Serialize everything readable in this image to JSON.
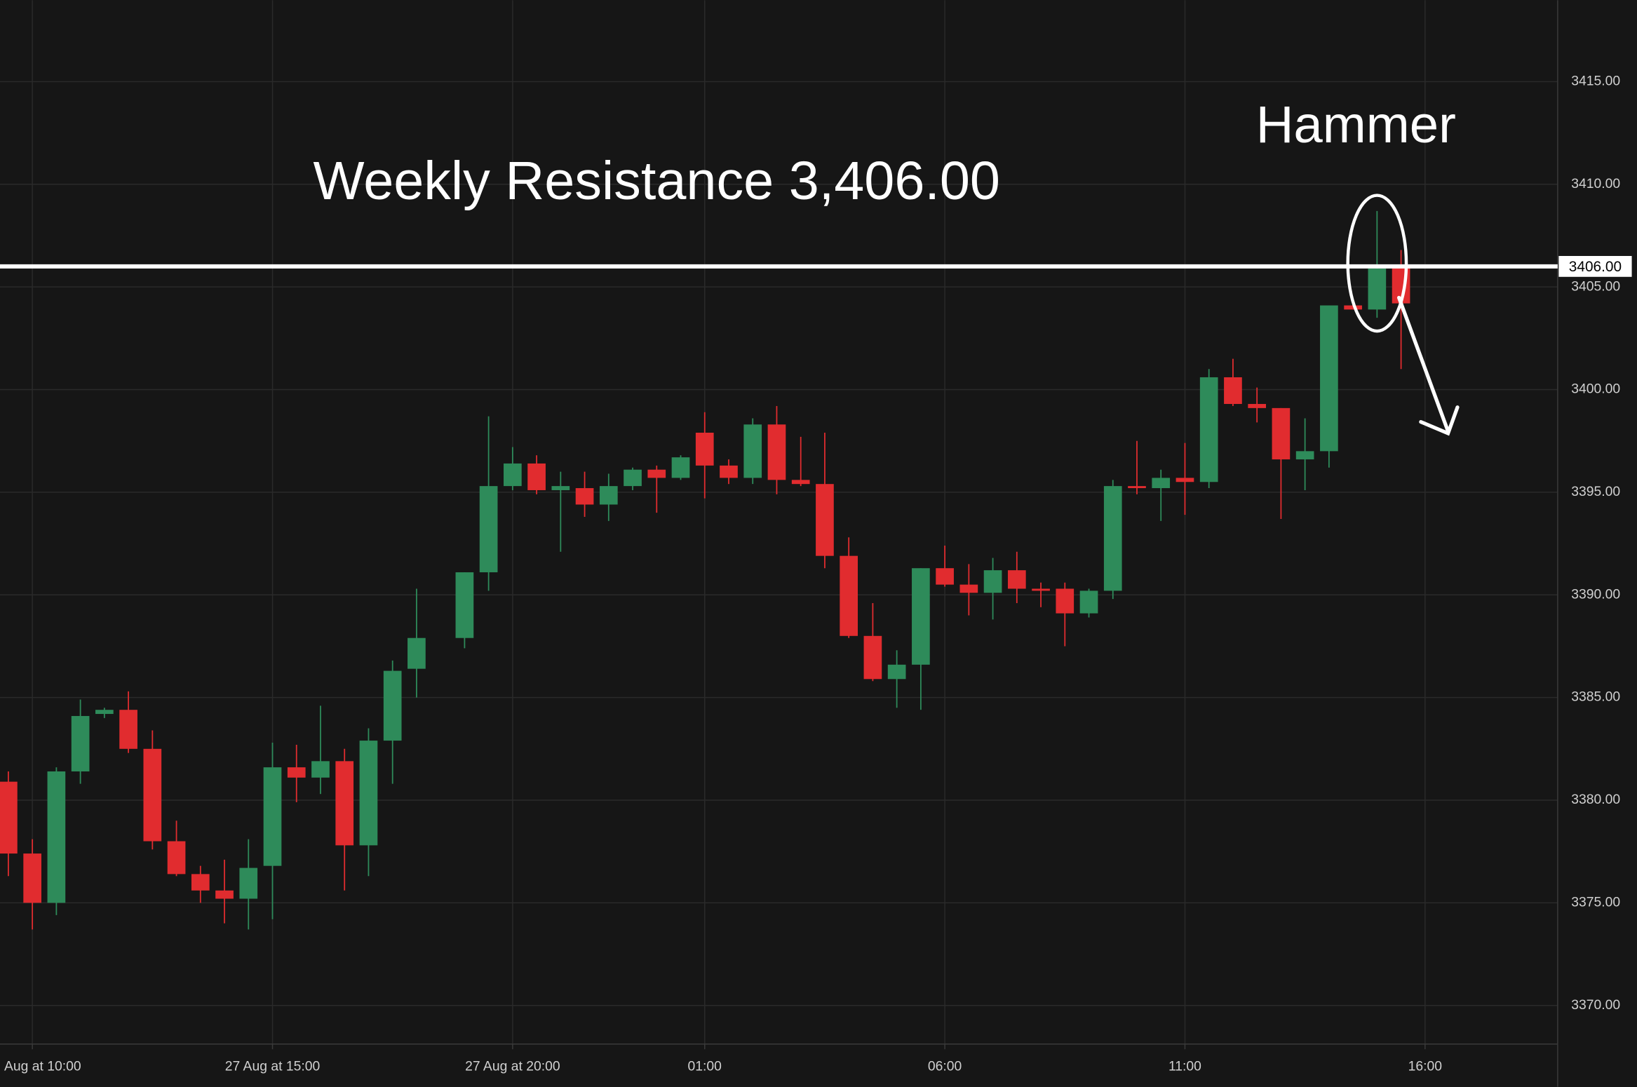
{
  "chart_data": {
    "type": "candlestick",
    "annotations": [
      "Weekly Resistance 3,406.00",
      "Hammer"
    ],
    "resistance": {
      "value": 3406,
      "label": "3406.00"
    },
    "up_color": "#2e8b5a",
    "down_color": "#e12c2f",
    "grid": true,
    "x": [
      0,
      1,
      2,
      3,
      4,
      5,
      6,
      7,
      8,
      9,
      10,
      11,
      12,
      13,
      14,
      15,
      16,
      17,
      19,
      20,
      21,
      22,
      23,
      24,
      25,
      26,
      27,
      28,
      29,
      30,
      31,
      32,
      33,
      34,
      35,
      36,
      37,
      38,
      39,
      40,
      41,
      42,
      43,
      44,
      45,
      46,
      47,
      48,
      49,
      50,
      51,
      52,
      53,
      54,
      55,
      56,
      57,
      58
    ],
    "open": [
      3380.9,
      3377.4,
      3375.0,
      3381.4,
      3384.2,
      3384.4,
      3382.5,
      3378.0,
      3376.4,
      3375.6,
      3375.2,
      3376.8,
      3381.6,
      3381.1,
      3381.9,
      3377.8,
      3382.9,
      3386.4,
      3387.9,
      3391.1,
      3395.3,
      3396.4,
      3395.1,
      3395.2,
      3394.4,
      3395.3,
      3396.1,
      3395.7,
      3397.9,
      3396.3,
      3395.7,
      3398.3,
      3395.6,
      3395.4,
      3391.9,
      3388.0,
      3385.9,
      3386.6,
      3391.3,
      3390.5,
      3390.1,
      3391.2,
      3390.3,
      3390.3,
      3389.1,
      3390.2,
      3395.3,
      3395.2,
      3395.7,
      3395.5,
      3400.6,
      3399.3,
      3399.1,
      3396.6,
      3397.0,
      3404.1,
      3403.9,
      3406.0
    ],
    "high": [
      3381.4,
      3378.1,
      3381.6,
      3384.9,
      3384.5,
      3385.3,
      3383.4,
      3379.0,
      3376.8,
      3377.1,
      3378.1,
      3382.8,
      3382.7,
      3384.6,
      3382.5,
      3383.5,
      3386.8,
      3390.3,
      3391.1,
      3398.7,
      3397.2,
      3396.8,
      3396.0,
      3396.0,
      3395.9,
      3396.2,
      3396.3,
      3396.8,
      3398.9,
      3396.6,
      3398.6,
      3399.2,
      3397.7,
      3397.9,
      3392.8,
      3389.6,
      3387.3,
      3391.3,
      3392.4,
      3391.5,
      3391.8,
      3392.1,
      3390.6,
      3390.6,
      3390.3,
      3395.6,
      3397.5,
      3396.1,
      3397.4,
      3401.0,
      3401.5,
      3400.1,
      3399.1,
      3398.6,
      3404.1,
      3404.2,
      3408.7,
      3406.8
    ],
    "low": [
      3376.3,
      3373.7,
      3374.4,
      3380.8,
      3384.0,
      3382.3,
      3377.6,
      3376.3,
      3375.0,
      3374.0,
      3373.7,
      3374.2,
      3379.9,
      3380.3,
      3375.6,
      3376.3,
      3380.8,
      3385.0,
      3387.4,
      3390.2,
      3395.1,
      3394.9,
      3392.1,
      3393.8,
      3393.6,
      3395.1,
      3394.0,
      3395.6,
      3394.7,
      3395.4,
      3395.4,
      3394.9,
      3395.3,
      3391.3,
      3387.9,
      3385.8,
      3384.5,
      3384.4,
      3390.4,
      3389.0,
      3388.8,
      3389.6,
      3389.4,
      3387.5,
      3388.9,
      3389.8,
      3394.9,
      3393.6,
      3393.9,
      3395.2,
      3399.2,
      3398.4,
      3393.7,
      3395.1,
      3396.2,
      3403.9,
      3403.5,
      3401.0
    ],
    "close": [
      3377.4,
      3375.0,
      3381.4,
      3384.1,
      3384.4,
      3382.5,
      3378.0,
      3376.4,
      3375.6,
      3375.2,
      3376.7,
      3381.6,
      3381.1,
      3381.9,
      3377.8,
      3382.9,
      3386.3,
      3387.9,
      3391.1,
      3395.3,
      3396.4,
      3395.1,
      3395.3,
      3394.4,
      3395.3,
      3396.1,
      3395.7,
      3396.7,
      3396.3,
      3395.7,
      3398.3,
      3395.6,
      3395.4,
      3391.9,
      3388.0,
      3385.9,
      3386.6,
      3391.3,
      3390.5,
      3390.1,
      3391.2,
      3390.3,
      3390.2,
      3389.1,
      3390.2,
      3395.3,
      3395.2,
      3395.7,
      3395.5,
      3400.6,
      3399.3,
      3399.1,
      3396.6,
      3397.0,
      3404.1,
      3403.9,
      3405.9,
      3404.2
    ],
    "xlim": [
      -0.348,
      64.522
    ],
    "xticks": [
      {
        "value": 1,
        "label": "Aug at 10:00"
      },
      {
        "value": 11,
        "label": "27 Aug at 15:00"
      },
      {
        "value": 21,
        "label": "27 Aug at 20:00"
      },
      {
        "value": 29,
        "label": "01:00"
      },
      {
        "value": 39,
        "label": "06:00"
      },
      {
        "value": 49,
        "label": "11:00"
      },
      {
        "value": 59,
        "label": "16:00"
      }
    ],
    "ylim": [
      3368.12,
      3418.97
    ],
    "yticks": [
      {
        "value": 3370,
        "label": "3370.00"
      },
      {
        "value": 3375,
        "label": "3375.00"
      },
      {
        "value": 3380,
        "label": "3380.00"
      },
      {
        "value": 3385,
        "label": "3385.00"
      },
      {
        "value": 3390,
        "label": "3390.00"
      },
      {
        "value": 3395,
        "label": "3395.00"
      },
      {
        "value": 3400,
        "label": "3400.00"
      },
      {
        "value": 3405,
        "label": "3405.00"
      },
      {
        "value": 3410,
        "label": "3410.00"
      },
      {
        "value": 3415,
        "label": "3415.00"
      }
    ]
  }
}
